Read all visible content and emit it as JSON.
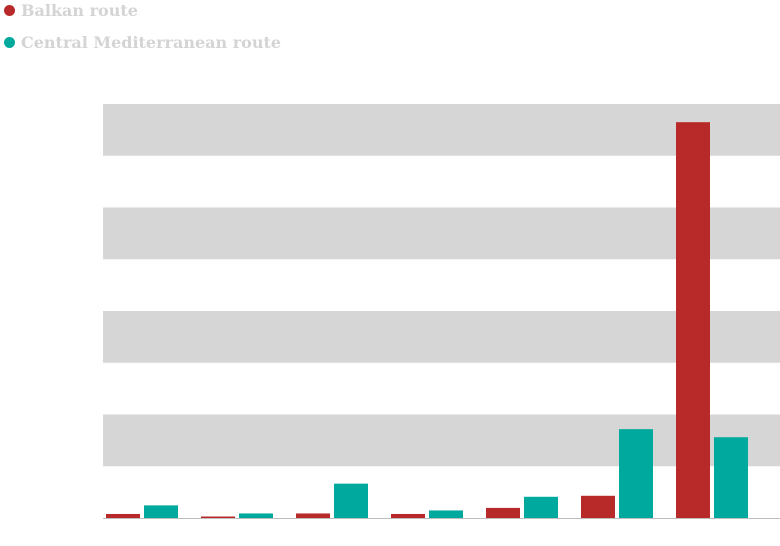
{
  "legend": {
    "items": [
      {
        "label": "Balkan route",
        "color": "#b82a2a"
      },
      {
        "label": "Central Mediterranean route",
        "color": "#00a99d"
      }
    ]
  },
  "chart_data": {
    "type": "bar",
    "title": "",
    "xlabel": "",
    "ylabel": "",
    "categories": [
      "",
      "",
      "",
      "",
      "",
      "",
      ""
    ],
    "ylim": [
      0,
      41000
    ],
    "bands": 8,
    "grid_band_color": "#d6d6d6",
    "series": [
      {
        "name": "Balkan route",
        "color": "#b82a2a",
        "values": [
          400,
          150,
          450,
          400,
          1000,
          2200,
          39200
        ]
      },
      {
        "name": "Central Mediterranean route",
        "color": "#00a99d",
        "values": [
          1250,
          450,
          3400,
          750,
          2100,
          8800,
          8000
        ]
      }
    ]
  }
}
